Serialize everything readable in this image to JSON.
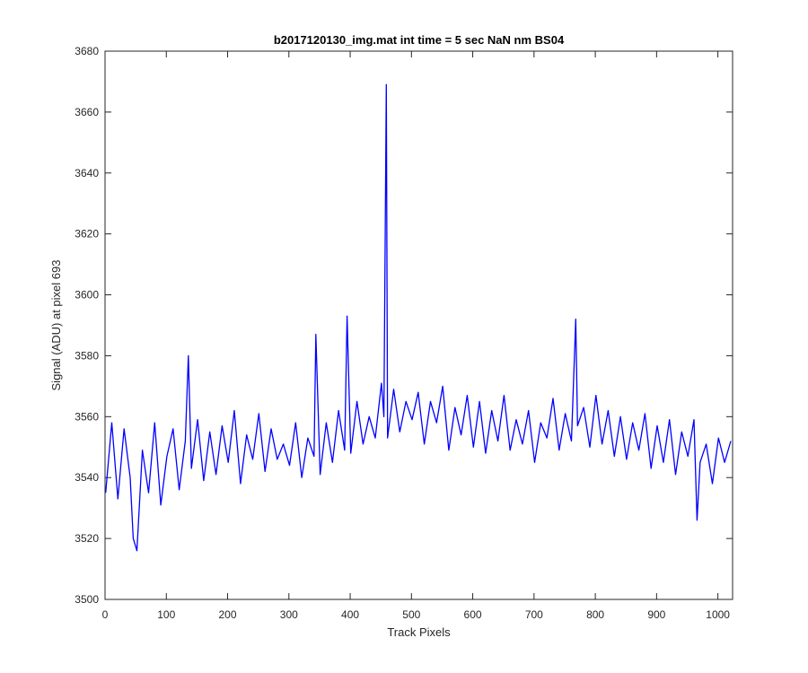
{
  "chart_data": {
    "type": "line",
    "title": "b2017120130_img.mat int time = 5 sec  NaN nm BS04",
    "xlabel": "Track Pixels",
    "ylabel": "Signal (ADU) at pixel 693",
    "xlim": [
      0,
      1024
    ],
    "ylim": [
      3500,
      3680
    ],
    "xticks": [
      0,
      100,
      200,
      300,
      400,
      500,
      600,
      700,
      800,
      900,
      1000
    ],
    "yticks": [
      3500,
      3520,
      3540,
      3560,
      3580,
      3600,
      3620,
      3640,
      3660,
      3680
    ],
    "grid": false,
    "legend": "none",
    "series": [
      {
        "color": "#0000ff",
        "x": [
          1,
          11,
          21,
          31,
          41,
          46,
          52,
          61,
          71,
          81,
          91,
          101,
          111,
          121,
          131,
          136,
          141,
          151,
          161,
          171,
          181,
          191,
          201,
          211,
          221,
          231,
          241,
          251,
          261,
          271,
          281,
          291,
          301,
          311,
          321,
          331,
          341,
          344,
          351,
          361,
          371,
          381,
          391,
          395,
          401,
          411,
          421,
          431,
          441,
          451,
          455,
          459,
          461,
          471,
          481,
          491,
          501,
          511,
          521,
          531,
          541,
          551,
          561,
          571,
          581,
          591,
          601,
          611,
          621,
          631,
          641,
          651,
          661,
          671,
          681,
          691,
          701,
          711,
          721,
          731,
          741,
          751,
          761,
          768,
          771,
          781,
          791,
          801,
          811,
          821,
          831,
          841,
          851,
          861,
          871,
          881,
          891,
          901,
          911,
          921,
          931,
          941,
          951,
          961,
          966,
          971,
          981,
          991,
          1001,
          1011,
          1021
        ],
        "y": [
          3535,
          3558,
          3533,
          3556,
          3540,
          3520,
          3516,
          3549,
          3535,
          3558,
          3531,
          3547,
          3556,
          3536,
          3552,
          3580,
          3543,
          3559,
          3539,
          3555,
          3541,
          3557,
          3545,
          3562,
          3538,
          3554,
          3546,
          3561,
          3542,
          3556,
          3546,
          3551,
          3544,
          3558,
          3540,
          3553,
          3547,
          3587,
          3541,
          3558,
          3545,
          3562,
          3549,
          3593,
          3548,
          3565,
          3551,
          3560,
          3553,
          3571,
          3560,
          3669,
          3553,
          3569,
          3555,
          3565,
          3559,
          3568,
          3551,
          3565,
          3558,
          3570,
          3549,
          3563,
          3554,
          3567,
          3550,
          3565,
          3548,
          3562,
          3552,
          3567,
          3549,
          3559,
          3551,
          3562,
          3545,
          3558,
          3553,
          3566,
          3549,
          3561,
          3552,
          3592,
          3557,
          3563,
          3550,
          3567,
          3551,
          3562,
          3547,
          3560,
          3546,
          3558,
          3549,
          3561,
          3543,
          3557,
          3545,
          3559,
          3541,
          3555,
          3547,
          3559,
          3526,
          3545,
          3551,
          3538,
          3553,
          3545,
          3552
        ]
      }
    ]
  }
}
